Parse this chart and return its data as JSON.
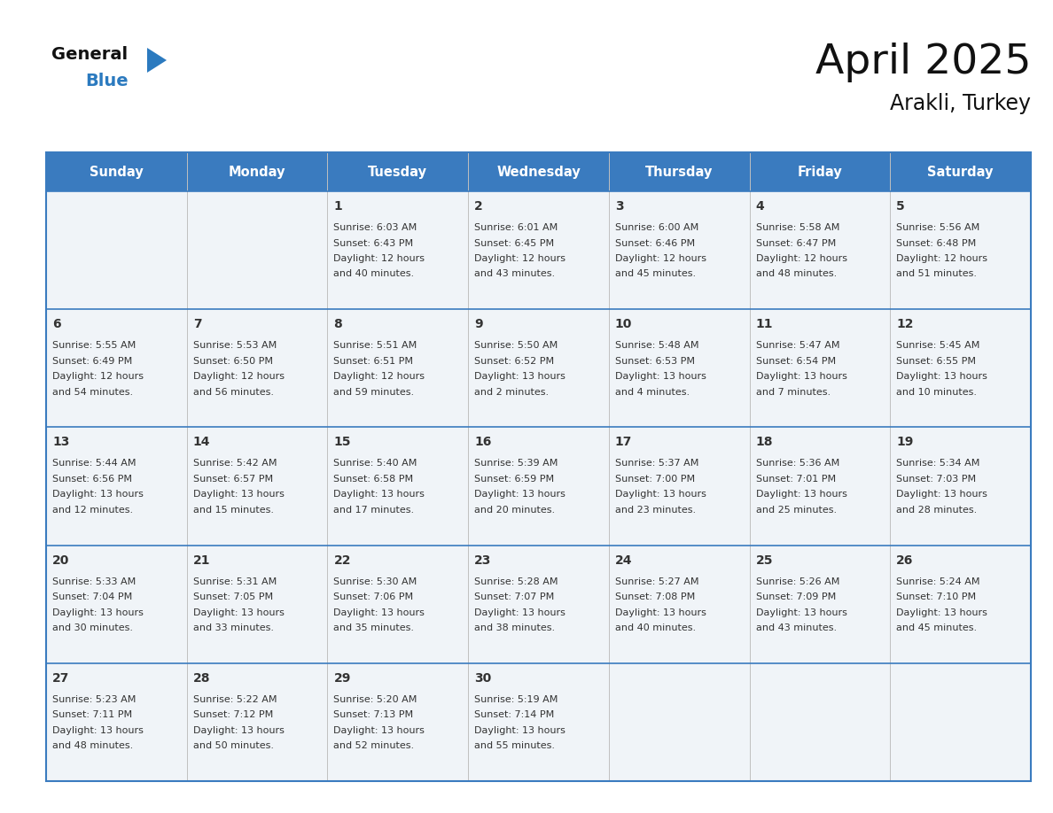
{
  "title": "April 2025",
  "subtitle": "Arakli, Turkey",
  "days_of_week": [
    "Sunday",
    "Monday",
    "Tuesday",
    "Wednesday",
    "Thursday",
    "Friday",
    "Saturday"
  ],
  "header_bg_color": "#3a7bbf",
  "header_text_color": "#ffffff",
  "cell_bg_odd": "#f0f4f8",
  "cell_bg_even": "#f8fafc",
  "border_color": "#3a7bbf",
  "row_line_color": "#3a7bbf",
  "col_line_color": "#c0c0c0",
  "text_color": "#333333",
  "title_color": "#111111",
  "subtitle_color": "#111111",
  "background_color": "#ffffff",
  "logo_general_color": "#111111",
  "logo_blue_color": "#2b7abf",
  "logo_triangle_color": "#2b7abf",
  "calendar_data": [
    [
      {
        "day": "",
        "sunrise": "",
        "sunset": "",
        "daylight": ""
      },
      {
        "day": "",
        "sunrise": "",
        "sunset": "",
        "daylight": ""
      },
      {
        "day": "1",
        "sunrise": "6:03 AM",
        "sunset": "6:43 PM",
        "daylight": "12 hours and 40 minutes."
      },
      {
        "day": "2",
        "sunrise": "6:01 AM",
        "sunset": "6:45 PM",
        "daylight": "12 hours and 43 minutes."
      },
      {
        "day": "3",
        "sunrise": "6:00 AM",
        "sunset": "6:46 PM",
        "daylight": "12 hours and 45 minutes."
      },
      {
        "day": "4",
        "sunrise": "5:58 AM",
        "sunset": "6:47 PM",
        "daylight": "12 hours and 48 minutes."
      },
      {
        "day": "5",
        "sunrise": "5:56 AM",
        "sunset": "6:48 PM",
        "daylight": "12 hours and 51 minutes."
      }
    ],
    [
      {
        "day": "6",
        "sunrise": "5:55 AM",
        "sunset": "6:49 PM",
        "daylight": "12 hours and 54 minutes."
      },
      {
        "day": "7",
        "sunrise": "5:53 AM",
        "sunset": "6:50 PM",
        "daylight": "12 hours and 56 minutes."
      },
      {
        "day": "8",
        "sunrise": "5:51 AM",
        "sunset": "6:51 PM",
        "daylight": "12 hours and 59 minutes."
      },
      {
        "day": "9",
        "sunrise": "5:50 AM",
        "sunset": "6:52 PM",
        "daylight": "13 hours and 2 minutes."
      },
      {
        "day": "10",
        "sunrise": "5:48 AM",
        "sunset": "6:53 PM",
        "daylight": "13 hours and 4 minutes."
      },
      {
        "day": "11",
        "sunrise": "5:47 AM",
        "sunset": "6:54 PM",
        "daylight": "13 hours and 7 minutes."
      },
      {
        "day": "12",
        "sunrise": "5:45 AM",
        "sunset": "6:55 PM",
        "daylight": "13 hours and 10 minutes."
      }
    ],
    [
      {
        "day": "13",
        "sunrise": "5:44 AM",
        "sunset": "6:56 PM",
        "daylight": "13 hours and 12 minutes."
      },
      {
        "day": "14",
        "sunrise": "5:42 AM",
        "sunset": "6:57 PM",
        "daylight": "13 hours and 15 minutes."
      },
      {
        "day": "15",
        "sunrise": "5:40 AM",
        "sunset": "6:58 PM",
        "daylight": "13 hours and 17 minutes."
      },
      {
        "day": "16",
        "sunrise": "5:39 AM",
        "sunset": "6:59 PM",
        "daylight": "13 hours and 20 minutes."
      },
      {
        "day": "17",
        "sunrise": "5:37 AM",
        "sunset": "7:00 PM",
        "daylight": "13 hours and 23 minutes."
      },
      {
        "day": "18",
        "sunrise": "5:36 AM",
        "sunset": "7:01 PM",
        "daylight": "13 hours and 25 minutes."
      },
      {
        "day": "19",
        "sunrise": "5:34 AM",
        "sunset": "7:03 PM",
        "daylight": "13 hours and 28 minutes."
      }
    ],
    [
      {
        "day": "20",
        "sunrise": "5:33 AM",
        "sunset": "7:04 PM",
        "daylight": "13 hours and 30 minutes."
      },
      {
        "day": "21",
        "sunrise": "5:31 AM",
        "sunset": "7:05 PM",
        "daylight": "13 hours and 33 minutes."
      },
      {
        "day": "22",
        "sunrise": "5:30 AM",
        "sunset": "7:06 PM",
        "daylight": "13 hours and 35 minutes."
      },
      {
        "day": "23",
        "sunrise": "5:28 AM",
        "sunset": "7:07 PM",
        "daylight": "13 hours and 38 minutes."
      },
      {
        "day": "24",
        "sunrise": "5:27 AM",
        "sunset": "7:08 PM",
        "daylight": "13 hours and 40 minutes."
      },
      {
        "day": "25",
        "sunrise": "5:26 AM",
        "sunset": "7:09 PM",
        "daylight": "13 hours and 43 minutes."
      },
      {
        "day": "26",
        "sunrise": "5:24 AM",
        "sunset": "7:10 PM",
        "daylight": "13 hours and 45 minutes."
      }
    ],
    [
      {
        "day": "27",
        "sunrise": "5:23 AM",
        "sunset": "7:11 PM",
        "daylight": "13 hours and 48 minutes."
      },
      {
        "day": "28",
        "sunrise": "5:22 AM",
        "sunset": "7:12 PM",
        "daylight": "13 hours and 50 minutes."
      },
      {
        "day": "29",
        "sunrise": "5:20 AM",
        "sunset": "7:13 PM",
        "daylight": "13 hours and 52 minutes."
      },
      {
        "day": "30",
        "sunrise": "5:19 AM",
        "sunset": "7:14 PM",
        "daylight": "13 hours and 55 minutes."
      },
      {
        "day": "",
        "sunrise": "",
        "sunset": "",
        "daylight": ""
      },
      {
        "day": "",
        "sunrise": "",
        "sunset": "",
        "daylight": ""
      },
      {
        "day": "",
        "sunrise": "",
        "sunset": "",
        "daylight": ""
      }
    ]
  ]
}
